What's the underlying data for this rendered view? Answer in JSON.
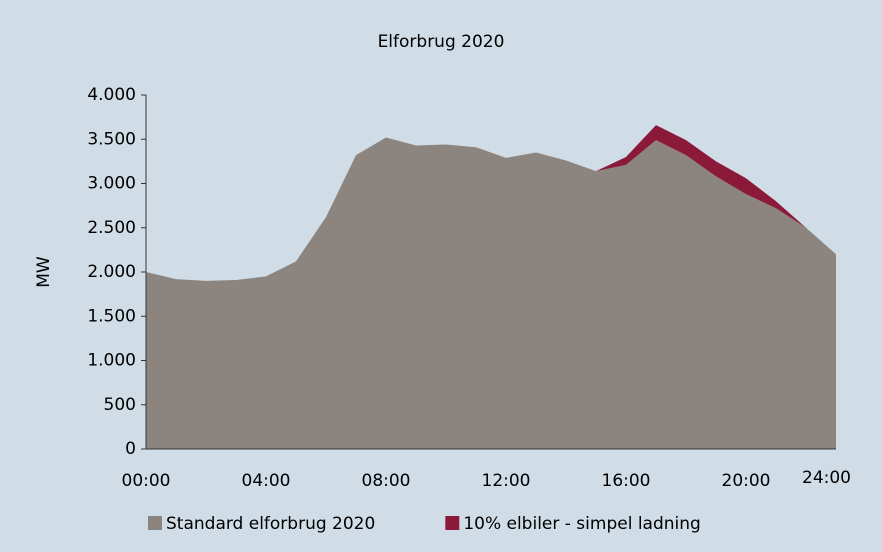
{
  "chart_data": {
    "type": "stacked-area",
    "title": "Elforbrug 2020",
    "ylabel": "MW",
    "categories": [
      "00:00",
      null,
      null,
      null,
      "04:00",
      null,
      null,
      null,
      "08:00",
      null,
      null,
      null,
      "12:00",
      null,
      null,
      null,
      "16:00",
      null,
      null,
      null,
      "20:00",
      null,
      null,
      "24:00"
    ],
    "series": [
      {
        "name": "Standard elforbrug 2020",
        "color": "#8c847e",
        "values": [
          2000,
          1920,
          1900,
          1910,
          1950,
          2120,
          2620,
          3320,
          3520,
          3430,
          3440,
          3410,
          3290,
          3350,
          3260,
          3140,
          3210,
          3490,
          3320,
          3080,
          2880,
          2720,
          2500,
          2200
        ]
      },
      {
        "name": "10% elbiler - simpel ladning",
        "color": "#8b1a3a",
        "values": [
          0,
          0,
          0,
          0,
          0,
          0,
          0,
          0,
          0,
          0,
          0,
          0,
          0,
          0,
          0,
          0,
          90,
          170,
          170,
          170,
          180,
          80,
          0,
          0
        ]
      }
    ],
    "ylim": [
      0,
      4000
    ],
    "yticks": [
      0,
      500,
      {
        "value": 1000,
        "label": "1.000"
      },
      {
        "value": 1500,
        "label": "1.500"
      },
      {
        "value": 2000,
        "label": "2.000"
      },
      {
        "value": 2500,
        "label": "2.500"
      },
      {
        "value": 3000,
        "label": "3.000"
      },
      {
        "value": 3500,
        "label": "3.500"
      },
      {
        "value": 4000,
        "label": "4.000"
      }
    ],
    "grid": false,
    "legend": "bottom"
  }
}
